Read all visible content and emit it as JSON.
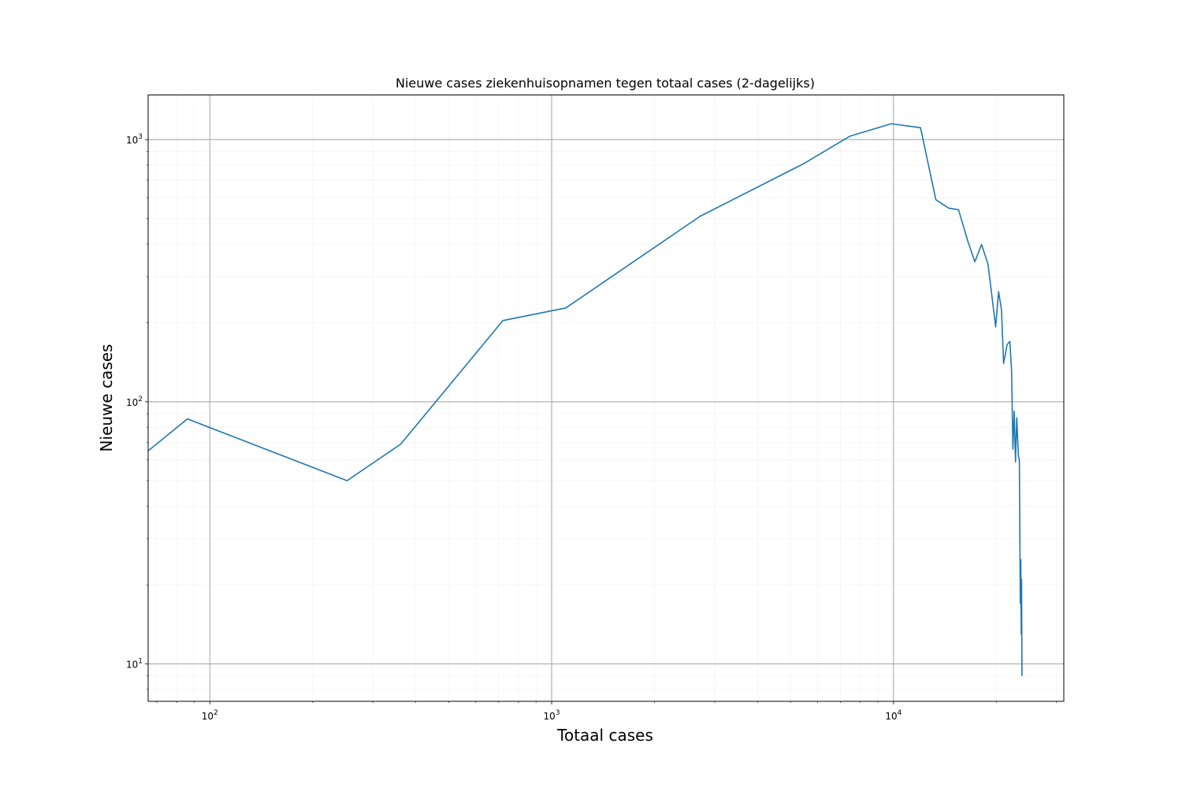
{
  "chart_data": {
    "type": "line",
    "title": "Nieuwe cases ziekenhuisopnamen tegen totaal cases (2-dagelijks)",
    "xlabel": "Totaal cases",
    "ylabel": "Nieuwe cases",
    "xscale": "log",
    "yscale": "log",
    "xlim": [
      66,
      31500
    ],
    "ylim": [
      7.2,
      1480
    ],
    "grid": true,
    "series_color": "#1f77b4",
    "grid_color": "#b0b0b0",
    "x_ticks": [
      {
        "value": 100,
        "base": "10",
        "exp": "2"
      },
      {
        "value": 1000,
        "base": "10",
        "exp": "3"
      },
      {
        "value": 10000,
        "base": "10",
        "exp": "4"
      }
    ],
    "y_ticks": [
      {
        "value": 10,
        "base": "10",
        "exp": "1"
      },
      {
        "value": 100,
        "base": "10",
        "exp": "2"
      },
      {
        "value": 1000,
        "base": "10",
        "exp": "3"
      }
    ],
    "series": [
      {
        "x": [
          66,
          86,
          252,
          362,
          720,
          1100,
          2720,
          5450,
          7450,
          9850,
          12000,
          13300,
          14500,
          15500,
          16500,
          17300,
          18100,
          18900,
          19500,
          19900,
          20300,
          20700,
          21000,
          21500,
          21900,
          22150,
          22350,
          22550,
          22750,
          22950,
          23200,
          23350,
          23500,
          23580,
          23650,
          23700,
          23760
        ],
        "y": [
          65,
          86,
          50,
          69,
          204,
          228,
          510,
          808,
          1030,
          1150,
          1110,
          590,
          548,
          540,
          410,
          342,
          398,
          335,
          240,
          193,
          263,
          225,
          140,
          165,
          170,
          132,
          66,
          92,
          59,
          87,
          62,
          60,
          17,
          25,
          13,
          21,
          9
        ]
      }
    ]
  }
}
